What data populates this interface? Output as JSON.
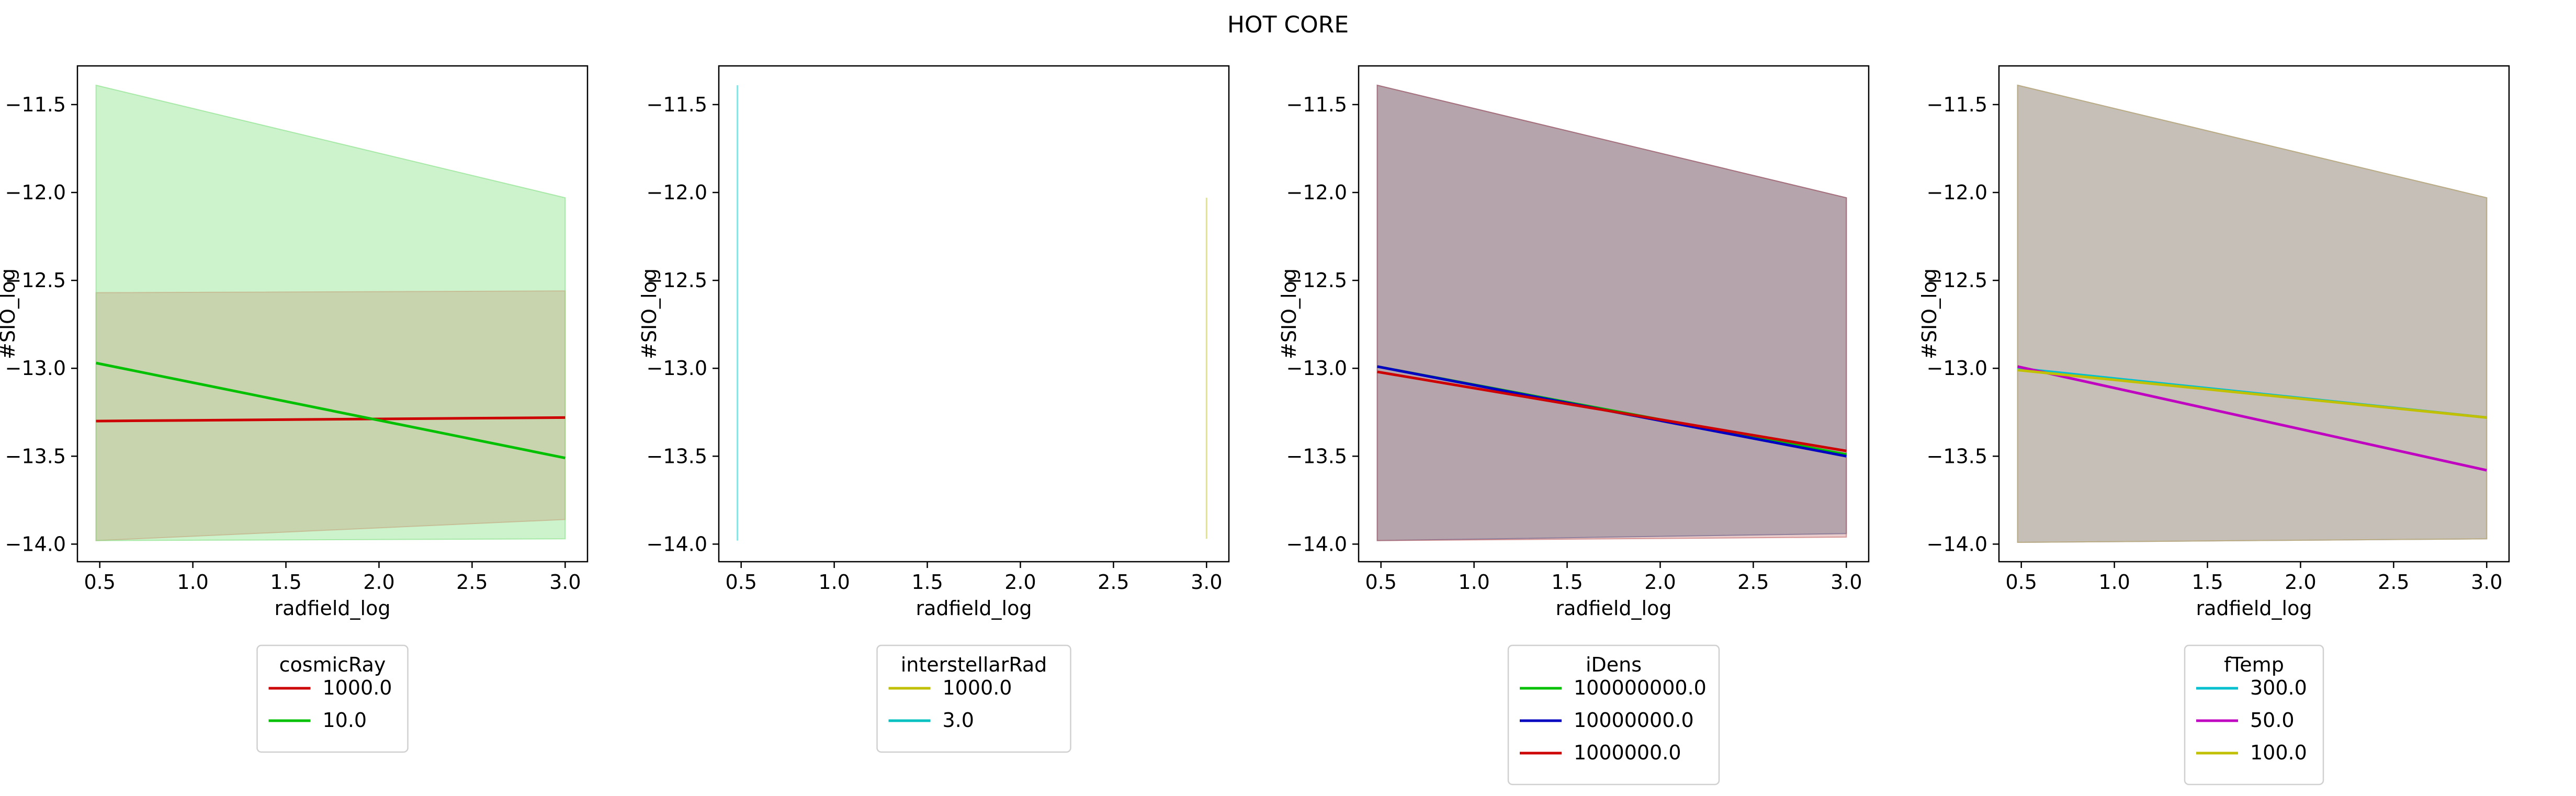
{
  "suptitle": "HOT CORE",
  "chart_data": [
    {
      "type": "line",
      "xlabel": "radfield_log",
      "ylabel": "#SIO_log",
      "xlim": [
        0.38,
        3.12
      ],
      "ylim": [
        -14.1,
        -11.28
      ],
      "xticks": [
        0.5,
        1.0,
        1.5,
        2.0,
        2.5,
        3.0
      ],
      "yticks": [
        -14.0,
        -13.5,
        -13.0,
        -12.5,
        -12.0,
        -11.5
      ],
      "legend_title": "cosmicRay",
      "legend_placement": "below",
      "series": [
        {
          "name": "1000.0",
          "color": "#cc0000",
          "x": [
            0.48,
            3.0
          ],
          "y": [
            -13.3,
            -13.28
          ],
          "band_low": [
            -13.98,
            -13.86
          ],
          "band_high": [
            -12.57,
            -12.56
          ],
          "band_color": "#f08080"
        },
        {
          "name": "10.0",
          "color": "#00c000",
          "x": [
            0.48,
            3.0
          ],
          "y": [
            -12.97,
            -13.51
          ],
          "band_low": [
            -13.98,
            -13.97
          ],
          "band_high": [
            -11.39,
            -12.03
          ],
          "band_color": "#80e080"
        }
      ]
    },
    {
      "type": "line",
      "xlabel": "radfield_log",
      "ylabel": "#SIO_log",
      "xlim": [
        0.38,
        3.12
      ],
      "ylim": [
        -14.1,
        -11.28
      ],
      "xticks": [
        0.5,
        1.0,
        1.5,
        2.0,
        2.5,
        3.0
      ],
      "yticks": [
        -14.0,
        -13.5,
        -13.0,
        -12.5,
        -12.0,
        -11.5
      ],
      "legend_title": "interstellarRad",
      "legend_placement": "below",
      "series": [
        {
          "name": "1000.0",
          "color": "#c0c000",
          "x": [
            3.0
          ],
          "y": [
            -13.0
          ],
          "band_low": [
            -13.97
          ],
          "band_high": [
            -12.03
          ],
          "band_color": "#c0c000"
        },
        {
          "name": "3.0",
          "color": "#00c0c0",
          "x": [
            0.48
          ],
          "y": [
            -12.97
          ],
          "band_low": [
            -13.98
          ],
          "band_high": [
            -11.39
          ],
          "band_color": "#00c0c0"
        }
      ]
    },
    {
      "type": "line",
      "xlabel": "radfield_log",
      "ylabel": "#SIO_log",
      "xlim": [
        0.38,
        3.12
      ],
      "ylim": [
        -14.1,
        -11.28
      ],
      "xticks": [
        0.5,
        1.0,
        1.5,
        2.0,
        2.5,
        3.0
      ],
      "yticks": [
        -14.0,
        -13.5,
        -13.0,
        -12.5,
        -12.0,
        -11.5
      ],
      "legend_title": "iDens",
      "legend_placement": "below",
      "series": [
        {
          "name": "100000000.0",
          "color": "#00c000",
          "x": [
            0.48,
            3.0
          ],
          "y": [
            -12.99,
            -13.49
          ],
          "band_low": [
            -13.98,
            -13.94
          ],
          "band_high": [
            -11.39,
            -12.03
          ],
          "band_color": "#80e080"
        },
        {
          "name": "10000000.0",
          "color": "#0000c0",
          "x": [
            0.48,
            3.0
          ],
          "y": [
            -12.99,
            -13.5
          ],
          "band_low": [
            -13.98,
            -13.94
          ],
          "band_high": [
            -11.39,
            -12.03
          ],
          "band_color": "#6060c0"
        },
        {
          "name": "1000000.0",
          "color": "#cc0000",
          "x": [
            0.48,
            3.0
          ],
          "y": [
            -13.02,
            -13.47
          ],
          "band_low": [
            -13.98,
            -13.96
          ],
          "band_high": [
            -11.39,
            -12.03
          ],
          "band_color": "#c06060"
        }
      ]
    },
    {
      "type": "line",
      "xlabel": "radfield_log",
      "ylabel": "#SIO_log",
      "xlim": [
        0.38,
        3.12
      ],
      "ylim": [
        -14.1,
        -11.28
      ],
      "xticks": [
        0.5,
        1.0,
        1.5,
        2.0,
        2.5,
        3.0
      ],
      "yticks": [
        -14.0,
        -13.5,
        -13.0,
        -12.5,
        -12.0,
        -11.5
      ],
      "legend_title": "fTemp",
      "legend_placement": "below",
      "series": [
        {
          "name": "300.0",
          "color": "#00c0d0",
          "x": [
            0.48,
            3.0
          ],
          "y": [
            -13.0,
            -13.28
          ],
          "band_low": [
            -13.99,
            -13.97
          ],
          "band_high": [
            -11.39,
            -12.03
          ],
          "band_color": "#60c0d0"
        },
        {
          "name": "50.0",
          "color": "#c000c0",
          "x": [
            0.48,
            3.0
          ],
          "y": [
            -12.99,
            -13.58
          ],
          "band_low": [
            -13.99,
            -13.97
          ],
          "band_high": [
            -11.39,
            -12.03
          ],
          "band_color": "#c060c0"
        },
        {
          "name": "100.0",
          "color": "#c0c000",
          "x": [
            0.48,
            3.0
          ],
          "y": [
            -13.01,
            -13.28
          ],
          "band_low": [
            -13.99,
            -13.97
          ],
          "band_high": [
            -11.39,
            -12.03
          ],
          "band_color": "#c0c060"
        }
      ]
    }
  ]
}
